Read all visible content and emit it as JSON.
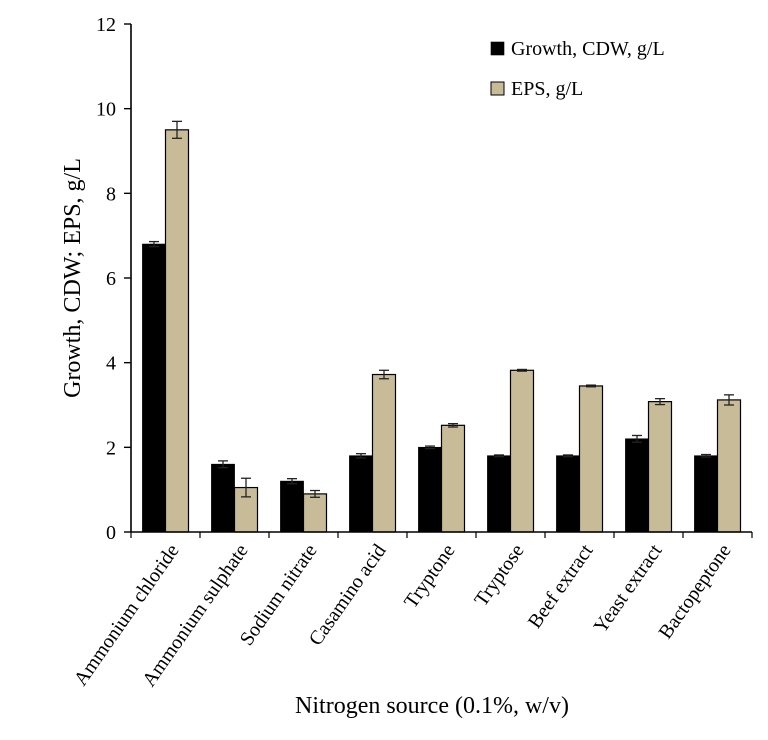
{
  "chart_data": {
    "type": "bar",
    "title": "",
    "xlabel": "Nitrogen source (0.1%, w/v)",
    "ylabel": "Growth, CDW; EPS, g/L",
    "ylim": [
      0,
      12
    ],
    "yticks": [
      "0",
      "2",
      "4",
      "6",
      "8",
      "10",
      "12"
    ],
    "grid": false,
    "legend_position": "top-right",
    "categories": [
      "Ammonium chloride",
      "Ammonium sulphate",
      "Sodium nitrate",
      "Casamino acid",
      "Tryptone",
      "Tryptose",
      "Beef extract",
      "Yeast extract",
      "Bactopeptone"
    ],
    "series": [
      {
        "name": "Growth, CDW, g/L",
        "color": "#000000",
        "values": [
          6.8,
          1.6,
          1.2,
          1.8,
          2.0,
          1.8,
          1.8,
          2.2,
          1.8
        ],
        "errors": [
          0.06,
          0.08,
          0.06,
          0.05,
          0.03,
          0.02,
          0.02,
          0.08,
          0.03
        ]
      },
      {
        "name": "EPS, g/L",
        "color": "#c7bb98",
        "values": [
          9.5,
          1.05,
          0.9,
          3.72,
          2.52,
          3.82,
          3.45,
          3.08,
          3.12
        ],
        "errors": [
          0.2,
          0.22,
          0.08,
          0.1,
          0.04,
          0.02,
          0.02,
          0.07,
          0.12
        ]
      }
    ]
  }
}
